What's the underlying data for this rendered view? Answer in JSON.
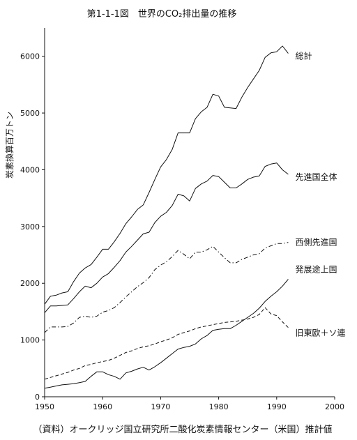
{
  "chart_data": {
    "type": "line",
    "title": "第1-1-1図　世界のCO₂排出量の推移",
    "ylabel": "炭素換算百万トン",
    "xlabel": "",
    "source": "（資料）オークリッジ国立研究所二酸化炭素情報センター（米国）推計値",
    "xlim": [
      1950,
      2000
    ],
    "ylim": [
      0,
      6500
    ],
    "x_ticks": [
      1950,
      1960,
      1970,
      1980,
      1990,
      2000
    ],
    "y_ticks": [
      0,
      1000,
      2000,
      3000,
      4000,
      5000,
      6000
    ],
    "grid": false,
    "series": [
      {
        "name": "総計",
        "style": "solid",
        "points": [
          [
            1950,
            1630
          ],
          [
            1951,
            1770
          ],
          [
            1952,
            1790
          ],
          [
            1953,
            1830
          ],
          [
            1954,
            1850
          ],
          [
            1955,
            2030
          ],
          [
            1956,
            2180
          ],
          [
            1957,
            2270
          ],
          [
            1958,
            2330
          ],
          [
            1959,
            2460
          ],
          [
            1960,
            2600
          ],
          [
            1961,
            2600
          ],
          [
            1962,
            2730
          ],
          [
            1963,
            2880
          ],
          [
            1964,
            3050
          ],
          [
            1965,
            3170
          ],
          [
            1966,
            3300
          ],
          [
            1967,
            3380
          ],
          [
            1968,
            3600
          ],
          [
            1969,
            3830
          ],
          [
            1970,
            4050
          ],
          [
            1971,
            4180
          ],
          [
            1972,
            4360
          ],
          [
            1973,
            4650
          ],
          [
            1974,
            4650
          ],
          [
            1975,
            4650
          ],
          [
            1976,
            4900
          ],
          [
            1977,
            5020
          ],
          [
            1978,
            5100
          ],
          [
            1979,
            5330
          ],
          [
            1980,
            5300
          ],
          [
            1981,
            5100
          ],
          [
            1982,
            5090
          ],
          [
            1983,
            5080
          ],
          [
            1984,
            5280
          ],
          [
            1985,
            5450
          ],
          [
            1986,
            5600
          ],
          [
            1987,
            5750
          ],
          [
            1988,
            5980
          ],
          [
            1989,
            6060
          ],
          [
            1990,
            6080
          ],
          [
            1991,
            6180
          ],
          [
            1992,
            6050
          ]
        ]
      },
      {
        "name": "先進国全体",
        "style": "solid",
        "points": [
          [
            1950,
            1480
          ],
          [
            1951,
            1600
          ],
          [
            1952,
            1600
          ],
          [
            1953,
            1610
          ],
          [
            1954,
            1620
          ],
          [
            1955,
            1730
          ],
          [
            1956,
            1850
          ],
          [
            1957,
            1950
          ],
          [
            1958,
            1920
          ],
          [
            1959,
            2000
          ],
          [
            1960,
            2110
          ],
          [
            1961,
            2170
          ],
          [
            1962,
            2280
          ],
          [
            1963,
            2400
          ],
          [
            1964,
            2550
          ],
          [
            1965,
            2650
          ],
          [
            1966,
            2760
          ],
          [
            1967,
            2870
          ],
          [
            1968,
            2900
          ],
          [
            1969,
            3070
          ],
          [
            1970,
            3180
          ],
          [
            1971,
            3250
          ],
          [
            1972,
            3370
          ],
          [
            1973,
            3570
          ],
          [
            1974,
            3540
          ],
          [
            1975,
            3450
          ],
          [
            1976,
            3670
          ],
          [
            1977,
            3750
          ],
          [
            1978,
            3800
          ],
          [
            1979,
            3900
          ],
          [
            1980,
            3880
          ],
          [
            1981,
            3780
          ],
          [
            1982,
            3680
          ],
          [
            1983,
            3680
          ],
          [
            1984,
            3750
          ],
          [
            1985,
            3830
          ],
          [
            1986,
            3870
          ],
          [
            1987,
            3890
          ],
          [
            1988,
            4060
          ],
          [
            1989,
            4100
          ],
          [
            1990,
            4120
          ],
          [
            1991,
            4000
          ],
          [
            1992,
            3920
          ]
        ]
      },
      {
        "name": "西側先進国",
        "style": "dash-dot",
        "points": [
          [
            1950,
            1130
          ],
          [
            1951,
            1230
          ],
          [
            1952,
            1230
          ],
          [
            1953,
            1230
          ],
          [
            1954,
            1240
          ],
          [
            1955,
            1300
          ],
          [
            1956,
            1400
          ],
          [
            1957,
            1420
          ],
          [
            1958,
            1400
          ],
          [
            1959,
            1420
          ],
          [
            1960,
            1490
          ],
          [
            1961,
            1520
          ],
          [
            1962,
            1570
          ],
          [
            1963,
            1660
          ],
          [
            1964,
            1760
          ],
          [
            1965,
            1850
          ],
          [
            1966,
            1940
          ],
          [
            1967,
            2010
          ],
          [
            1968,
            2100
          ],
          [
            1969,
            2240
          ],
          [
            1970,
            2320
          ],
          [
            1971,
            2380
          ],
          [
            1972,
            2470
          ],
          [
            1973,
            2580
          ],
          [
            1974,
            2510
          ],
          [
            1975,
            2430
          ],
          [
            1976,
            2550
          ],
          [
            1977,
            2550
          ],
          [
            1978,
            2590
          ],
          [
            1979,
            2650
          ],
          [
            1980,
            2550
          ],
          [
            1981,
            2450
          ],
          [
            1982,
            2360
          ],
          [
            1983,
            2360
          ],
          [
            1984,
            2420
          ],
          [
            1985,
            2460
          ],
          [
            1986,
            2500
          ],
          [
            1987,
            2520
          ],
          [
            1988,
            2620
          ],
          [
            1989,
            2660
          ],
          [
            1990,
            2700
          ],
          [
            1991,
            2700
          ],
          [
            1992,
            2720
          ]
        ]
      },
      {
        "name": "発展途上国",
        "style": "solid",
        "points": [
          [
            1950,
            150
          ],
          [
            1951,
            170
          ],
          [
            1952,
            190
          ],
          [
            1953,
            210
          ],
          [
            1954,
            220
          ],
          [
            1955,
            230
          ],
          [
            1956,
            250
          ],
          [
            1957,
            270
          ],
          [
            1958,
            360
          ],
          [
            1959,
            440
          ],
          [
            1960,
            440
          ],
          [
            1961,
            390
          ],
          [
            1962,
            360
          ],
          [
            1963,
            310
          ],
          [
            1964,
            420
          ],
          [
            1965,
            450
          ],
          [
            1966,
            490
          ],
          [
            1967,
            520
          ],
          [
            1968,
            470
          ],
          [
            1969,
            530
          ],
          [
            1970,
            600
          ],
          [
            1971,
            680
          ],
          [
            1972,
            760
          ],
          [
            1973,
            840
          ],
          [
            1974,
            870
          ],
          [
            1975,
            890
          ],
          [
            1976,
            930
          ],
          [
            1977,
            1020
          ],
          [
            1978,
            1080
          ],
          [
            1979,
            1170
          ],
          [
            1980,
            1190
          ],
          [
            1981,
            1200
          ],
          [
            1982,
            1200
          ],
          [
            1983,
            1260
          ],
          [
            1984,
            1330
          ],
          [
            1985,
            1400
          ],
          [
            1986,
            1470
          ],
          [
            1987,
            1560
          ],
          [
            1988,
            1680
          ],
          [
            1989,
            1770
          ],
          [
            1990,
            1850
          ],
          [
            1991,
            1950
          ],
          [
            1992,
            2070
          ]
        ]
      },
      {
        "name": "旧東欧＋ソ連",
        "style": "dashed",
        "points": [
          [
            1950,
            310
          ],
          [
            1951,
            340
          ],
          [
            1952,
            370
          ],
          [
            1953,
            400
          ],
          [
            1954,
            430
          ],
          [
            1955,
            470
          ],
          [
            1956,
            500
          ],
          [
            1957,
            550
          ],
          [
            1958,
            570
          ],
          [
            1959,
            600
          ],
          [
            1960,
            620
          ],
          [
            1961,
            640
          ],
          [
            1962,
            680
          ],
          [
            1963,
            730
          ],
          [
            1964,
            780
          ],
          [
            1965,
            810
          ],
          [
            1966,
            850
          ],
          [
            1967,
            880
          ],
          [
            1968,
            900
          ],
          [
            1969,
            930
          ],
          [
            1970,
            970
          ],
          [
            1971,
            1000
          ],
          [
            1972,
            1040
          ],
          [
            1973,
            1100
          ],
          [
            1974,
            1130
          ],
          [
            1975,
            1160
          ],
          [
            1976,
            1200
          ],
          [
            1977,
            1230
          ],
          [
            1978,
            1250
          ],
          [
            1979,
            1270
          ],
          [
            1980,
            1290
          ],
          [
            1981,
            1310
          ],
          [
            1982,
            1320
          ],
          [
            1983,
            1330
          ],
          [
            1984,
            1350
          ],
          [
            1985,
            1370
          ],
          [
            1986,
            1400
          ],
          [
            1987,
            1450
          ],
          [
            1988,
            1570
          ],
          [
            1989,
            1460
          ],
          [
            1990,
            1430
          ],
          [
            1991,
            1320
          ],
          [
            1992,
            1220
          ]
        ]
      }
    ]
  }
}
